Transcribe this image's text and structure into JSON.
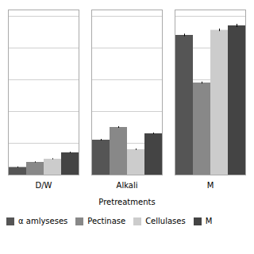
{
  "chart_data": {
    "type": "bar",
    "categories": [
      "D/W",
      "Alkali",
      "M"
    ],
    "series": [
      {
        "name": "α amlyseses",
        "color": "#555555",
        "values": [
          1.2,
          5.5,
          22.0
        ],
        "errors": [
          0.08,
          0.12,
          0.2
        ]
      },
      {
        "name": "Pectinase",
        "color": "#888888",
        "values": [
          2.0,
          7.5,
          14.5
        ],
        "errors": [
          0.08,
          0.12,
          0.15
        ]
      },
      {
        "name": "Cellulases",
        "color": "#cccccc",
        "values": [
          2.5,
          4.0,
          22.8
        ],
        "errors": [
          0.08,
          0.1,
          0.2
        ]
      },
      {
        "name": "M",
        "color": "#444444",
        "values": [
          3.5,
          6.5,
          23.5
        ],
        "errors": [
          0.1,
          0.12,
          0.25
        ]
      }
    ],
    "xlabel": "Pretreatments",
    "ylim": [
      0,
      26
    ],
    "yticks": [
      0,
      5,
      10,
      15,
      20,
      25
    ],
    "grid": true,
    "legend": "bottom",
    "tick_labels": "x"
  }
}
